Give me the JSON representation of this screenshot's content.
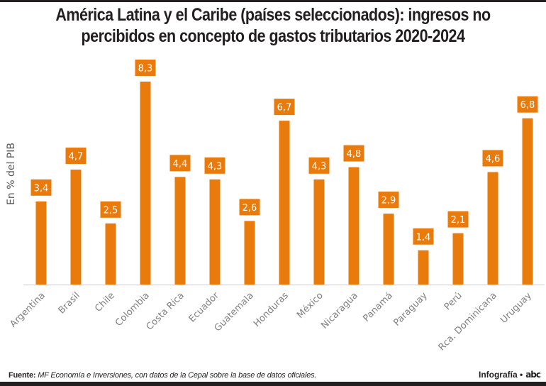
{
  "header": {
    "title_line1": "América Latina y el Caribe (países seleccionados): ingresos no",
    "title_line2": "percibidos en concepto de gastos tributarios 2020-2024"
  },
  "chart_data": {
    "type": "bar",
    "title": "América Latina y el Caribe (países seleccionados): ingresos no percibidos en concepto de gastos tributarios 2020-2024",
    "xlabel": "",
    "ylabel": "En % del PIB",
    "ylim": [
      0,
      8.3
    ],
    "grid": false,
    "categories": [
      "Argentina",
      "Brasil",
      "Chile",
      "Colombia",
      "Costa Rica",
      "Ecuador",
      "Guatemala",
      "Honduras",
      "México",
      "Nicaragua",
      "Panamá",
      "Paraguay",
      "Perú",
      "Rca. Dominicana",
      "Uruguay"
    ],
    "values": [
      3.4,
      4.7,
      2.5,
      8.3,
      4.4,
      4.3,
      2.6,
      6.7,
      4.3,
      4.8,
      2.9,
      1.4,
      2.1,
      4.6,
      6.8
    ],
    "data_labels": [
      "3,4",
      "4,7",
      "2,5",
      "8,3",
      "4,4",
      "4,3",
      "2,6",
      "6,7",
      "4,3",
      "4,8",
      "2,9",
      "1,4",
      "2,1",
      "4,6",
      "6,8"
    ],
    "bar_color": "#e87b0c",
    "label_text_color": "#ffffff",
    "axis_color": "#d9dde3",
    "tick_label_color": "#808080"
  },
  "footer": {
    "source_label": "Fuente:",
    "source_text": "MF Economía e Inversiones, con datos de la Cepal sobre la base de datos oficiales.",
    "credit_label": "Infografía •",
    "logo_text": "abc"
  }
}
